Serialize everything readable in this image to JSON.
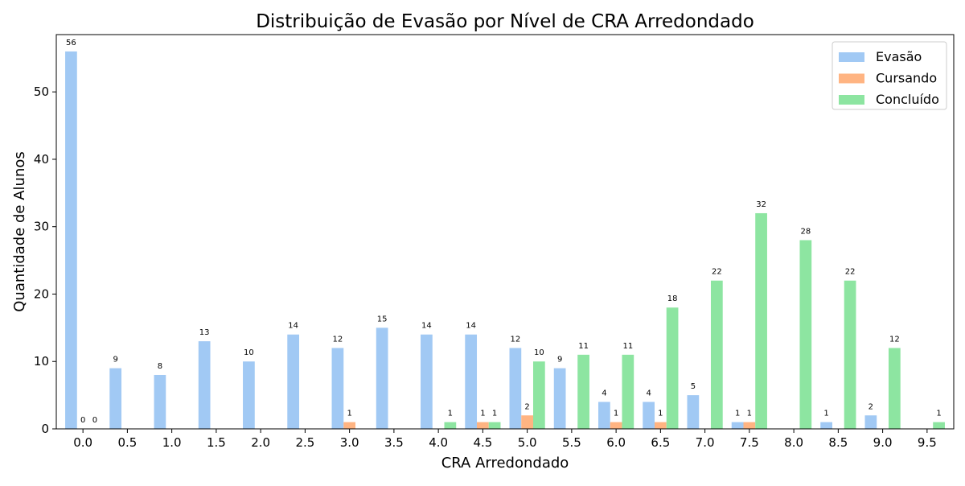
{
  "chart_data": {
    "type": "bar",
    "title": "Distribuição de Evasão por Nível de CRA Arredondado",
    "xlabel": "CRA Arredondado",
    "ylabel": "Quantidade de Alunos",
    "ylim": [
      0,
      58.5
    ],
    "yticks": [
      0,
      10,
      20,
      30,
      40,
      50
    ],
    "grid": false,
    "legend_position": "top-right",
    "categories": [
      "0.0",
      "0.5",
      "1.0",
      "1.5",
      "2.0",
      "2.5",
      "3.0",
      "3.5",
      "4.0",
      "4.5",
      "5.0",
      "5.5",
      "6.0",
      "6.5",
      "7.0",
      "7.5",
      "8.0",
      "8.5",
      "9.0",
      "9.5"
    ],
    "series": [
      {
        "name": "Evasão",
        "color": "#a1c9f4",
        "values": [
          56,
          9,
          8,
          13,
          10,
          14,
          12,
          15,
          14,
          14,
          12,
          9,
          4,
          4,
          5,
          1,
          null,
          1,
          2,
          null
        ]
      },
      {
        "name": "Cursando",
        "color": "#ffb482",
        "values": [
          0,
          null,
          null,
          null,
          null,
          null,
          1,
          null,
          null,
          1,
          2,
          null,
          1,
          1,
          null,
          1,
          null,
          null,
          null,
          null
        ]
      },
      {
        "name": "Concluído",
        "color": "#8de5a1",
        "values": [
          0,
          null,
          null,
          null,
          null,
          null,
          null,
          null,
          1,
          1,
          10,
          11,
          11,
          18,
          22,
          32,
          28,
          22,
          12,
          1
        ]
      }
    ]
  }
}
